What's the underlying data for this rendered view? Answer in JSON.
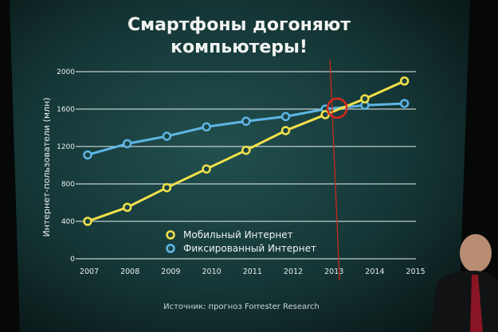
{
  "slide": {
    "title_line1": "Смартфоны догоняют",
    "title_line2": "компьютеры!",
    "source": "Источник: прогноз Forrester Research"
  },
  "chart_data": {
    "type": "line",
    "title": "Смартфоны догоняют компьютеры!",
    "xlabel": "",
    "ylabel": "Интернет-пользователи (млн)",
    "x": [
      2007,
      2008,
      2009,
      2010,
      2011,
      2012,
      2013,
      2014,
      2015
    ],
    "x_tick_labels": [
      "2007",
      "2008",
      "2009",
      "2010",
      "2011",
      "2012",
      "2013",
      "2014",
      "2015"
    ],
    "y_ticks": [
      0,
      400,
      800,
      1200,
      1600,
      2000
    ],
    "y_tick_labels": [
      "0",
      "400",
      "800",
      "1200",
      "1600",
      "2000"
    ],
    "ylim": [
      0,
      2000
    ],
    "xlim": [
      2007,
      2015
    ],
    "grid": "horizontal",
    "legend_placement": "bottom-center",
    "series": [
      {
        "name": "Мобильный Интернет",
        "color": "#f2e14a",
        "values": [
          400,
          550,
          760,
          960,
          1160,
          1370,
          1540,
          1710,
          1900
        ]
      },
      {
        "name": "Фиксированный Интернет",
        "color": "#5fb6e6",
        "values": [
          1110,
          1230,
          1310,
          1410,
          1470,
          1520,
          1600,
          1640,
          1660
        ]
      }
    ],
    "annotations": [
      {
        "type": "circle",
        "x": 2013.3,
        "y": 1610,
        "color": "#d8281e"
      },
      {
        "type": "vertical-line",
        "x": 2013.3,
        "color": "#c8281e"
      }
    ]
  },
  "colors": {
    "background": "#173b3c",
    "grid": "#dfe8e8",
    "text": "#e8eeee"
  }
}
